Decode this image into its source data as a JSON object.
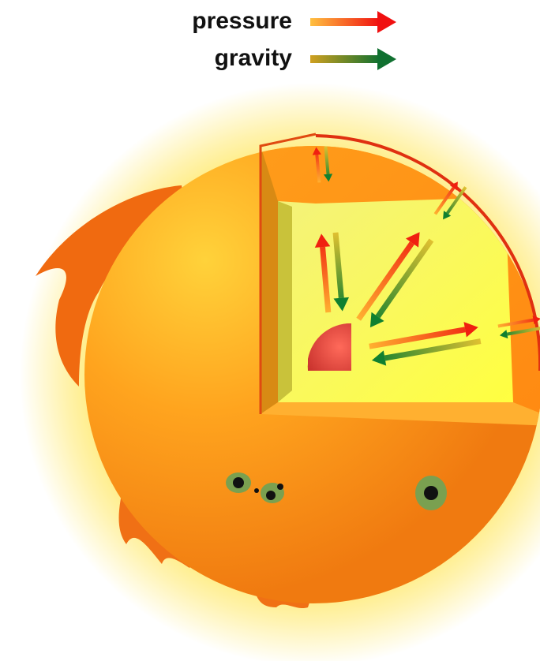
{
  "legend": [
    {
      "label": "pressure"
    },
    {
      "label": "gravity"
    }
  ]
}
